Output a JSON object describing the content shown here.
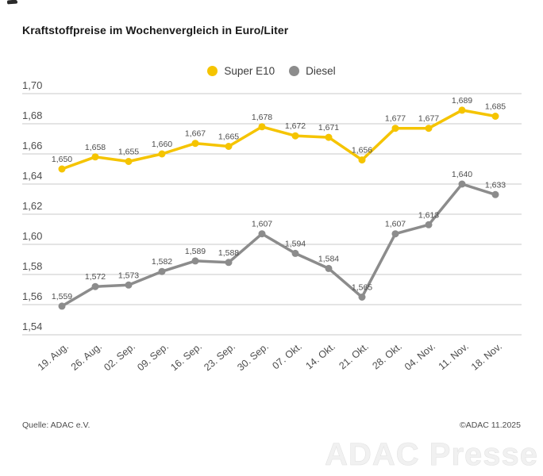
{
  "page": {
    "title": "Kraftstoffpreise im Wochenvergleich in Euro/Liter",
    "source": "Quelle: ADAC e.V.",
    "copyright": "©ADAC 11.2025",
    "watermark": "ADAC Presse"
  },
  "legend": [
    {
      "label": "Super E10",
      "color": "#F5C400"
    },
    {
      "label": "Diesel",
      "color": "#8C8C8C"
    }
  ],
  "colors": {
    "super_e10": "#F5C400",
    "diesel": "#8C8C8C",
    "gridline": "#c9c9c9",
    "axis_text": "#4d4d4d",
    "value_label": "#4d4d4d",
    "title_text": "#1a1a1a"
  },
  "chart_data": {
    "type": "line",
    "title": "Kraftstoffpreise im Wochenvergleich in Euro/Liter",
    "categories": [
      "19. Aug.",
      "26. Aug.",
      "02. Sep.",
      "09. Sep.",
      "16. Sep.",
      "23. Sep.",
      "30. Sep.",
      "07. Okt.",
      "14. Okt.",
      "21. Okt.",
      "28. Okt.",
      "04. Nov.",
      "11. Nov.",
      "18. Nov."
    ],
    "series": [
      {
        "name": "Super E10",
        "color": "#F5C400",
        "values": [
          1.65,
          1.658,
          1.655,
          1.66,
          1.667,
          1.665,
          1.678,
          1.672,
          1.671,
          1.656,
          1.677,
          1.677,
          1.689,
          1.685
        ]
      },
      {
        "name": "Diesel",
        "color": "#8C8C8C",
        "values": [
          1.559,
          1.572,
          1.573,
          1.582,
          1.589,
          1.588,
          1.607,
          1.594,
          1.584,
          1.565,
          1.607,
          1.613,
          1.64,
          1.633
        ]
      }
    ],
    "ylabel": "Euro/Liter",
    "ylim": [
      1.54,
      1.7
    ],
    "ytick_step": 0.02,
    "ytick_labels": [
      "1,70",
      "1,68",
      "1,66",
      "1,64",
      "1,62",
      "1,60",
      "1,58",
      "1,56",
      "1,54"
    ],
    "grid": true,
    "legend_position": "top",
    "value_labels_shown": true,
    "number_format": "german-decimal-comma"
  }
}
